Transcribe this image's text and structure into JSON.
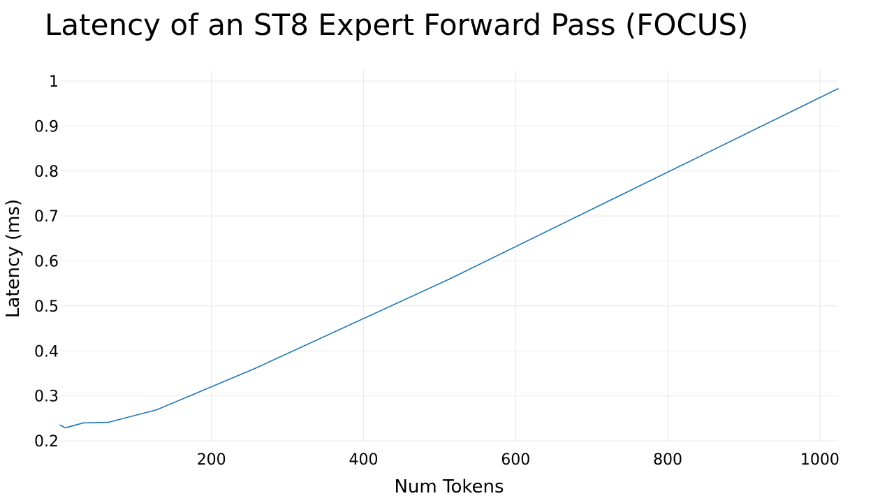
{
  "chart_data": {
    "type": "line",
    "title": "Latency of an ST8 Expert Forward Pass (FOCUS)",
    "xlabel": "Num Tokens",
    "ylabel": "Latency (ms)",
    "xlim": [
      1,
      1024
    ],
    "ylim": [
      0.2,
      1.0
    ],
    "x_ticks": [
      200,
      400,
      600,
      800,
      1000
    ],
    "x_tick_labels": [
      "200",
      "400",
      "600",
      "800",
      "1000"
    ],
    "y_ticks": [
      0.2,
      0.3,
      0.4,
      0.5,
      0.6,
      0.7,
      0.8,
      0.9,
      1.0
    ],
    "y_tick_labels": [
      "0.2",
      "0.3",
      "0.4",
      "0.5",
      "0.6",
      "0.7",
      "0.8",
      "0.9",
      "1"
    ],
    "grid": true,
    "legend": "none",
    "series": [
      {
        "color": "#1f77b4",
        "x": [
          1,
          8,
          32,
          64,
          128,
          256,
          512,
          1024
        ],
        "y": [
          0.235,
          0.229,
          0.24,
          0.241,
          0.269,
          0.36,
          0.559,
          0.983
        ]
      }
    ]
  }
}
